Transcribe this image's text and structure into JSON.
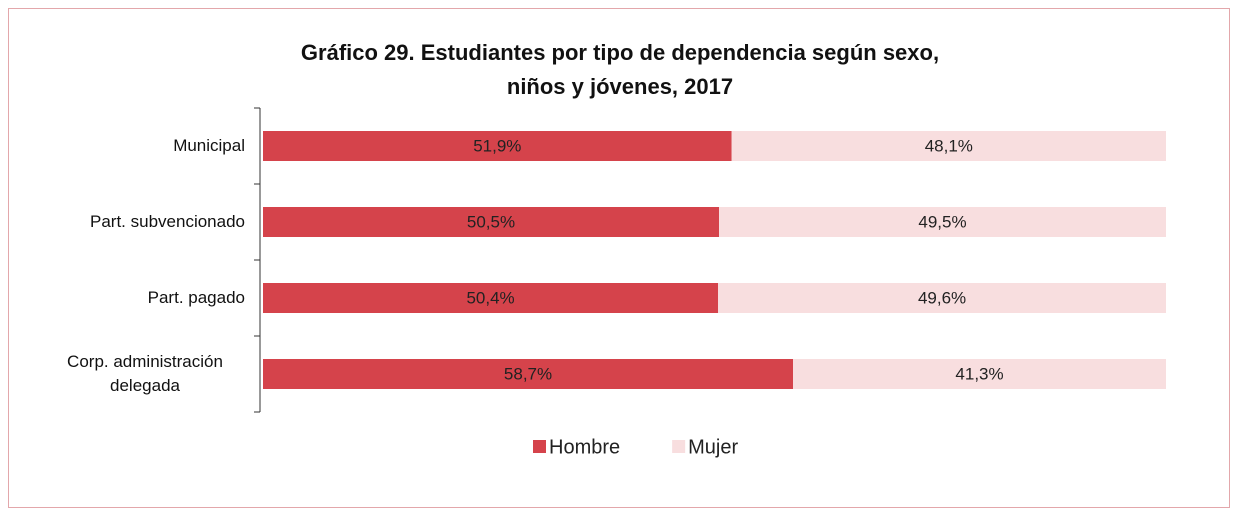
{
  "chart_data": {
    "type": "stacked_bar_horizontal",
    "title": "Gráfico 29. Estudiantes por tipo de dependencia según sexo, niños y jóvenes, 2017",
    "categories": [
      "Municipal",
      "Part. subvencionado",
      "Part. pagado",
      "Corp. administración delegada"
    ],
    "series": [
      {
        "name": "Hombre",
        "color": "#d5434b",
        "values": [
          51.9,
          50.5,
          50.4,
          58.7
        ],
        "value_labels": [
          "51,9%",
          "50,5%",
          "50,4%",
          "58,7%"
        ]
      },
      {
        "name": "Mujer",
        "color": "#f8dedf",
        "values": [
          48.1,
          49.5,
          49.6,
          41.3
        ],
        "value_labels": [
          "48,1%",
          "49,5%",
          "49,6%",
          "41,3%"
        ]
      }
    ],
    "xlim": [
      0,
      100
    ],
    "legend": "bottom"
  }
}
